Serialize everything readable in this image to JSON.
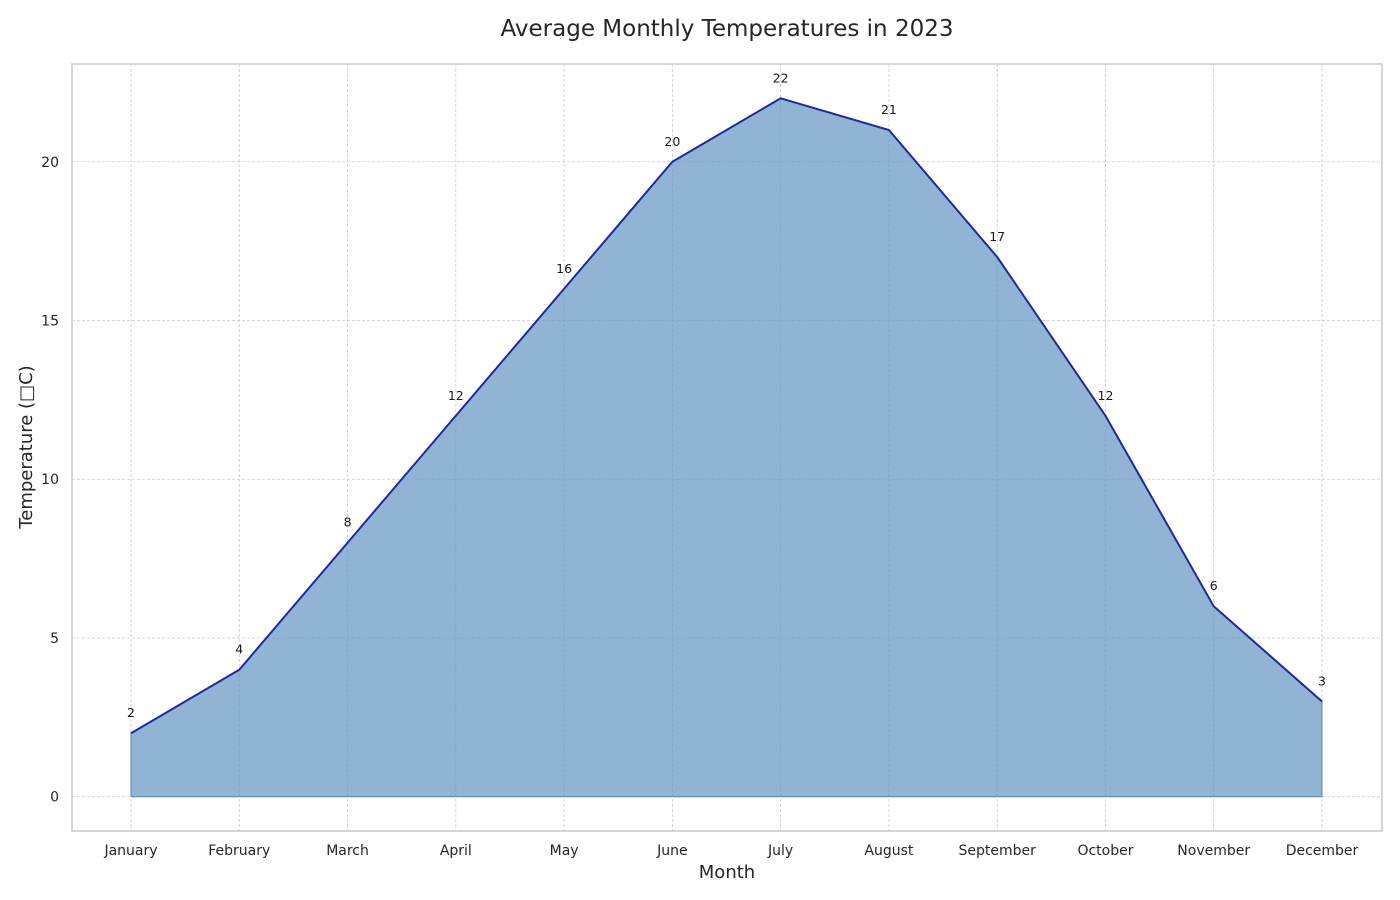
{
  "chart_data": {
    "type": "area",
    "title": "Average Monthly Temperatures in 2023",
    "xlabel": "Month",
    "ylabel": "Temperature (□C)",
    "categories": [
      "January",
      "February",
      "March",
      "April",
      "May",
      "June",
      "July",
      "August",
      "September",
      "October",
      "November",
      "December"
    ],
    "values": [
      2,
      4,
      8,
      12,
      16,
      20,
      22,
      21,
      17,
      12,
      6,
      3
    ],
    "data_labels": [
      "2",
      "4",
      "8",
      "12",
      "16",
      "20",
      "22",
      "21",
      "17",
      "12",
      "6",
      "3"
    ],
    "ylim": [
      -1.08,
      23.08
    ],
    "yticks": [
      0,
      5,
      10,
      15,
      20
    ],
    "ytick_labels": [
      "0",
      "5",
      "10",
      "15",
      "20"
    ],
    "grid": true,
    "colors": {
      "fill": "#6e9bc5",
      "line": "#1f2a9a"
    }
  }
}
